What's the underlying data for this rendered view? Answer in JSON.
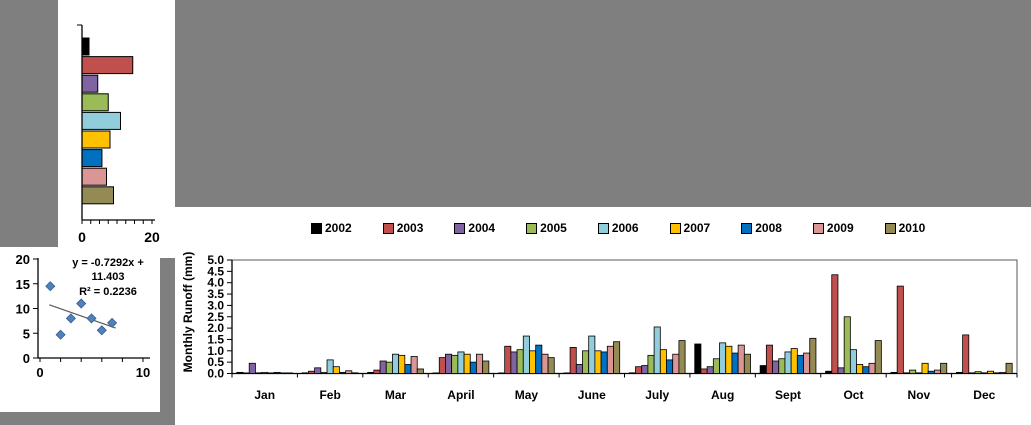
{
  "palette": {
    "background_gray": "#7f7f7f",
    "axis_color": "#000000",
    "border_gray": "#595959",
    "scatter_point_color": "#4f81bd",
    "trendline_color": "#595959"
  },
  "chart_data": [
    {
      "type": "bar",
      "orientation": "horizontal",
      "title": "",
      "categories": [
        "2002",
        "2003",
        "2004",
        "2005",
        "2006",
        "2007",
        "2008",
        "2009",
        "2010"
      ],
      "values": [
        2,
        14.5,
        4.5,
        7.5,
        11,
        8,
        5.7,
        7,
        9
      ],
      "colors": [
        "#000000",
        "#c0504d",
        "#8064a2",
        "#9bbb59",
        "#92cddc",
        "#ffc000",
        "#0070c0",
        "#d99694",
        "#948a54"
      ],
      "xlim": [
        0,
        20
      ],
      "x_tick_labels": [
        "0",
        "20"
      ],
      "x_tick_step": 2.5,
      "grid": false,
      "legend": "none"
    },
    {
      "type": "scatter",
      "title": "",
      "points": [
        [
          1,
          14.5
        ],
        [
          2,
          4.7
        ],
        [
          3,
          8
        ],
        [
          4,
          11
        ],
        [
          5,
          8
        ],
        [
          6,
          5.6
        ],
        [
          7,
          7.1
        ]
      ],
      "equation_lines": [
        "y = -0.7292x +",
        "11.403",
        "R² = 0.2236"
      ],
      "trendline": {
        "slope": -0.7292,
        "intercept": 11.403,
        "x_start": 0.9,
        "x_end": 7.35
      },
      "xlim": [
        0,
        10
      ],
      "ylim": [
        0,
        20
      ],
      "y_tick_values": [
        0,
        5,
        10,
        15,
        20
      ],
      "y_tick_labels": [
        "0",
        "5",
        "10",
        "15",
        "20"
      ],
      "x_tick_values": [
        0,
        2,
        4,
        6,
        8,
        10
      ],
      "x_tick_labels": [
        "0",
        "10"
      ],
      "grid": false,
      "legend": "none"
    },
    {
      "type": "bar",
      "grouped": true,
      "title": "",
      "ylabel": "Monthly  Runoff (mm)",
      "xlabel": "",
      "categories": [
        "Jan",
        "Feb",
        "Mar",
        "April",
        "May",
        "June",
        "July",
        "Aug",
        "Sept",
        "Oct",
        "Nov",
        "Dec"
      ],
      "ylim": [
        0,
        5
      ],
      "y_tick_step": 0.5,
      "grid": false,
      "legend_position": "top",
      "series": [
        {
          "name": "2002",
          "color": "#000000",
          "values": [
            0.05,
            0.03,
            0.05,
            0.02,
            0.02,
            0.02,
            0.03,
            1.3,
            0.35,
            0.1,
            0.05,
            0.05
          ]
        },
        {
          "name": "2003",
          "color": "#c0504d",
          "values": [
            0.02,
            0.1,
            0.15,
            0.7,
            1.2,
            1.15,
            0.3,
            0.2,
            1.25,
            4.35,
            3.85,
            1.7
          ]
        },
        {
          "name": "2004",
          "color": "#8064a2",
          "values": [
            0.45,
            0.25,
            0.55,
            0.85,
            0.95,
            0.4,
            0.35,
            0.3,
            0.55,
            0.25,
            0.03,
            0.03
          ]
        },
        {
          "name": "2005",
          "color": "#9bbb59",
          "values": [
            0.03,
            0.05,
            0.5,
            0.8,
            1.05,
            1.0,
            0.8,
            0.65,
            0.65,
            2.5,
            0.15,
            0.08
          ]
        },
        {
          "name": "2006",
          "color": "#92cddc",
          "values": [
            0.05,
            0.6,
            0.85,
            0.95,
            1.65,
            1.65,
            2.05,
            1.35,
            0.95,
            1.05,
            0.03,
            0.03
          ]
        },
        {
          "name": "2007",
          "color": "#ffc000",
          "values": [
            0.02,
            0.3,
            0.8,
            0.85,
            1.0,
            1.0,
            1.05,
            1.2,
            1.1,
            0.4,
            0.45,
            0.1
          ]
        },
        {
          "name": "2008",
          "color": "#0070c0",
          "values": [
            0.05,
            0.05,
            0.4,
            0.5,
            1.25,
            0.95,
            0.6,
            0.9,
            0.8,
            0.3,
            0.1,
            0.03
          ]
        },
        {
          "name": "2009",
          "color": "#d99694",
          "values": [
            0.02,
            0.12,
            0.75,
            0.85,
            0.85,
            1.2,
            0.85,
            1.25,
            0.9,
            0.45,
            0.15,
            0.05
          ]
        },
        {
          "name": "2010",
          "color": "#948a54",
          "values": [
            0.02,
            0.03,
            0.2,
            0.55,
            0.7,
            1.4,
            1.45,
            0.85,
            1.55,
            1.45,
            0.45,
            0.45
          ]
        }
      ]
    }
  ]
}
